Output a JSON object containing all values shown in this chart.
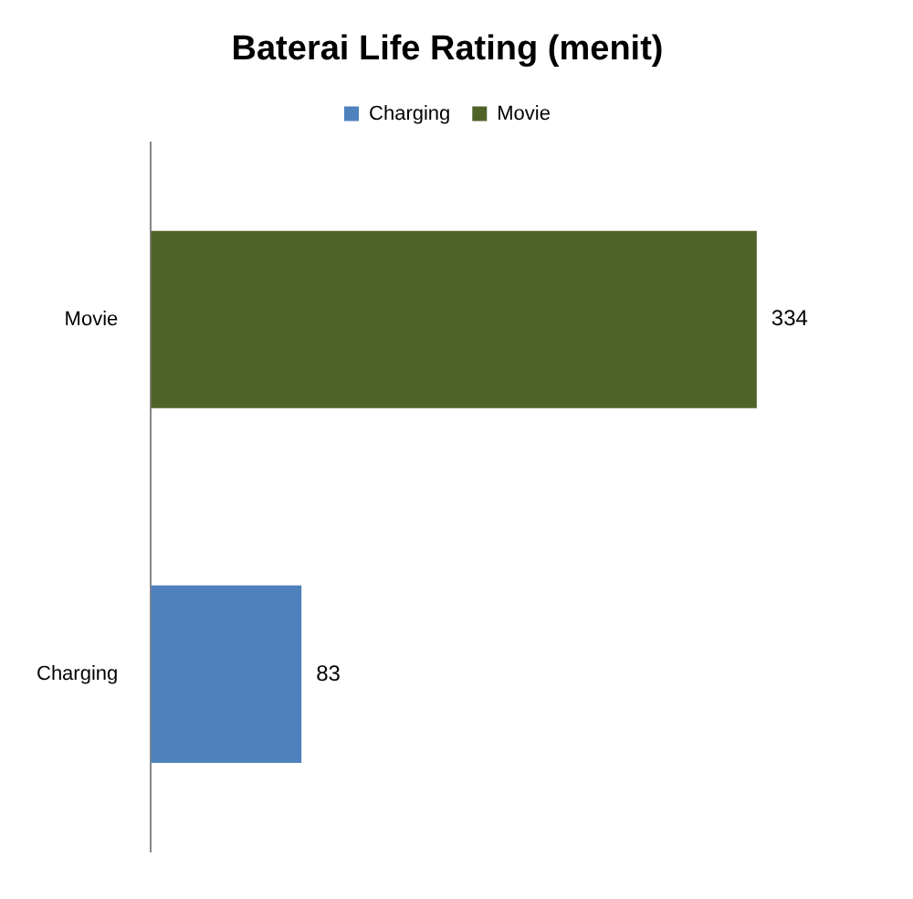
{
  "chart_data": {
    "type": "bar",
    "title": "Baterai Life Rating (menit)",
    "orientation": "horizontal",
    "categories": [
      "Movie",
      "Charging"
    ],
    "series": [
      {
        "name": "Charging",
        "color": "#4f81bd",
        "values": [
          null,
          83
        ]
      },
      {
        "name": "Movie",
        "color": "#4f6228",
        "values": [
          334,
          null
        ]
      }
    ],
    "tick_labels": "y",
    "grid": false,
    "legend": "top",
    "data_labels": true
  }
}
